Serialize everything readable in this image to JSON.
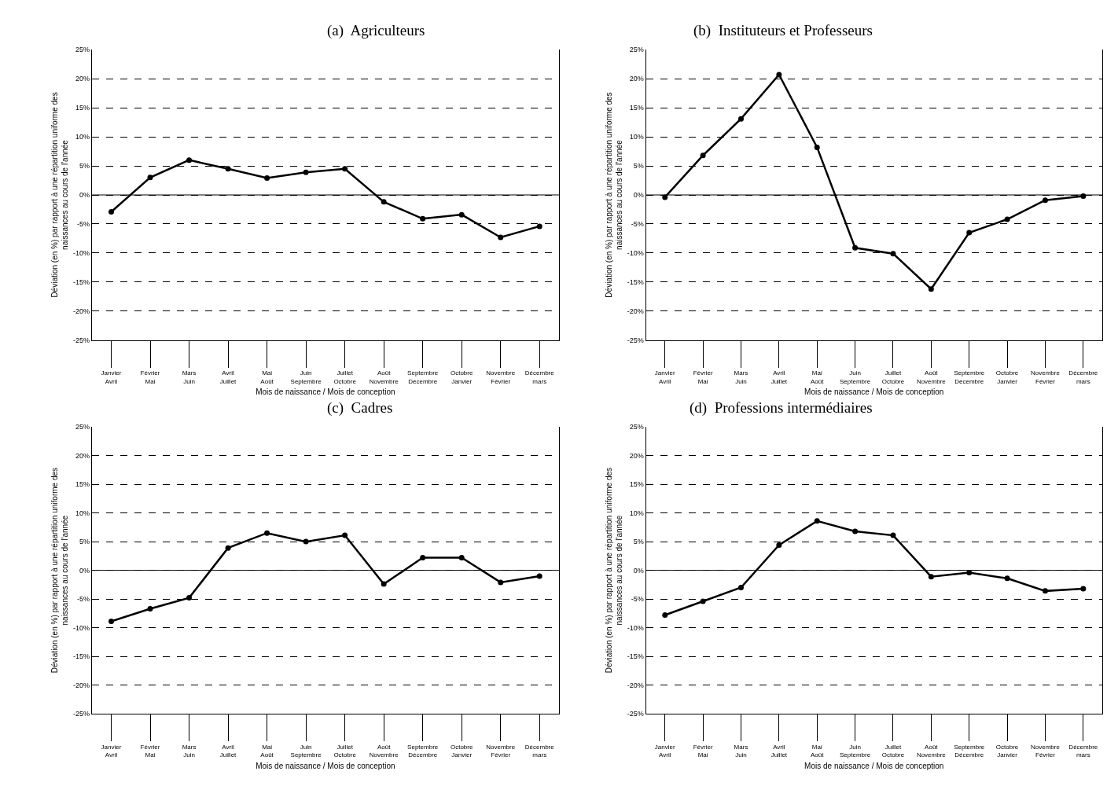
{
  "chart_data": [
    {
      "type": "line",
      "title": "(a)  Agriculteurs",
      "xlabel": "Mois de naissance / Mois de conception",
      "ylabel": "Déviation (en %) par rapport à une répartition uniforme des\nnaissances au cours de l'année",
      "categories": [
        "Janvier\nAvril",
        "Février\nMai",
        "Mars\nJuin",
        "Avril\nJuillet",
        "Mai\nAoût",
        "Juin\nSeptembre",
        "Juillet\nOctobre",
        "Août\nNovembre",
        "Septembre\nDécembre",
        "Octobre\nJanvier",
        "Novembre\nFévrier",
        "Décembre\nmars"
      ],
      "series": [
        {
          "color": "#000000",
          "values": [
            -2.9,
            3.0,
            6.0,
            4.5,
            2.9,
            3.9,
            4.5,
            -1.2,
            -4.1,
            -3.4,
            -7.3,
            -5.4
          ]
        }
      ],
      "ylim": [
        -25,
        25
      ],
      "yticks": [
        {
          "value": -25,
          "label": "-25%"
        },
        {
          "value": -20,
          "label": "-20%"
        },
        {
          "value": -15,
          "label": "-15%"
        },
        {
          "value": -10,
          "label": "-10%"
        },
        {
          "value": -5,
          "label": "-5%"
        },
        {
          "value": 0,
          "label": "0%"
        },
        {
          "value": 5,
          "label": "5%"
        },
        {
          "value": 10,
          "label": "10%"
        },
        {
          "value": 15,
          "label": "15%"
        },
        {
          "value": 20,
          "label": "20%"
        },
        {
          "value": 25,
          "label": "25%"
        }
      ],
      "ref_lines": [
        {
          "axis": "y",
          "value": 0,
          "color": "#000000",
          "line_style": "solid"
        }
      ],
      "grid": "y",
      "marker": "circle",
      "line_style": "solid"
    },
    {
      "type": "line",
      "title": "(b)  Instituteurs et Professeurs",
      "xlabel": "Mois de naissance / Mois de conception",
      "ylabel": "Déviation (en %) par rapport à une répartition uniforme des\nnaissances au cours de l'année",
      "categories": [
        "Janvier\nAvril",
        "Février\nMai",
        "Mars\nJuin",
        "Avril\nJuillet",
        "Mai\nAoût",
        "Juin\nSeptembre",
        "Juillet\nOctobre",
        "Août\nNovembre",
        "Septembre\nDécembre",
        "Octobre\nJanvier",
        "Novembre\nFévrier",
        "Décembre\nmars"
      ],
      "series": [
        {
          "color": "#000000",
          "values": [
            -0.4,
            6.8,
            13.1,
            20.7,
            8.2,
            -9.1,
            -10.1,
            -16.2,
            -6.5,
            -4.2,
            -0.9,
            -0.2
          ]
        }
      ],
      "ylim": [
        -25,
        25
      ],
      "yticks": [
        {
          "value": -25,
          "label": "-25%"
        },
        {
          "value": -20,
          "label": "-20%"
        },
        {
          "value": -15,
          "label": "-15%"
        },
        {
          "value": -10,
          "label": "-10%"
        },
        {
          "value": -5,
          "label": "-5%"
        },
        {
          "value": 0,
          "label": "0%"
        },
        {
          "value": 5,
          "label": "5%"
        },
        {
          "value": 10,
          "label": "10%"
        },
        {
          "value": 15,
          "label": "15%"
        },
        {
          "value": 20,
          "label": "20%"
        },
        {
          "value": 25,
          "label": "25%"
        }
      ],
      "ref_lines": [
        {
          "axis": "y",
          "value": 0,
          "color": "#000000",
          "line_style": "solid"
        }
      ],
      "grid": "y",
      "marker": "circle",
      "line_style": "solid"
    },
    {
      "type": "line",
      "title": "(c)  Cadres",
      "xlabel": "Mois de naissance / Mois de conception",
      "ylabel": "Déviation (en %) par rapport à une répartition uniforme des\nnaissances au cours de l'année",
      "categories": [
        "Janvier\nAvril",
        "Février\nMai",
        "Mars\nJuin",
        "Avril\nJuillet",
        "Mai\nAoût",
        "Juin\nSeptembre",
        "Juillet\nOctobre",
        "Août\nNovembre",
        "Septembre\nDécembre",
        "Octobre\nJanvier",
        "Novembre\nFévrier",
        "Décembre\nmars"
      ],
      "series": [
        {
          "color": "#000000",
          "values": [
            -8.9,
            -6.7,
            -4.8,
            3.9,
            6.5,
            5.0,
            6.1,
            -2.4,
            2.2,
            2.2,
            -2.1,
            -1.0
          ]
        }
      ],
      "ylim": [
        -25,
        25
      ],
      "yticks": [
        {
          "value": -25,
          "label": "-25%"
        },
        {
          "value": -20,
          "label": "-20%"
        },
        {
          "value": -15,
          "label": "-15%"
        },
        {
          "value": -10,
          "label": "-10%"
        },
        {
          "value": -5,
          "label": "-5%"
        },
        {
          "value": 0,
          "label": "0%"
        },
        {
          "value": 5,
          "label": "5%"
        },
        {
          "value": 10,
          "label": "10%"
        },
        {
          "value": 15,
          "label": "15%"
        },
        {
          "value": 20,
          "label": "20%"
        },
        {
          "value": 25,
          "label": "25%"
        }
      ],
      "ref_lines": [
        {
          "axis": "y",
          "value": 0,
          "color": "#000000",
          "line_style": "solid"
        }
      ],
      "grid": "y",
      "marker": "circle",
      "line_style": "solid"
    },
    {
      "type": "line",
      "title": "(d)  Professions intermédiaires",
      "xlabel": "Mois de naissance / Mois de conception",
      "ylabel": "Déviation (en %) par rapport à une répartition uniforme des\nnaissances au cours de l'année",
      "categories": [
        "Janvier\nAvril",
        "Février\nMai",
        "Mars\nJuin",
        "Avril\nJuillet",
        "Mai\nAoût",
        "Juin\nSeptembre",
        "Juillet\nOctobre",
        "Août\nNovembre",
        "Septembre\nDécembre",
        "Octobre\nJanvier",
        "Novembre\nFévrier",
        "Décembre\nmars"
      ],
      "series": [
        {
          "color": "#000000",
          "values": [
            -7.8,
            -5.4,
            -3.0,
            4.4,
            8.6,
            6.8,
            6.1,
            -1.1,
            -0.4,
            -1.4,
            -3.6,
            -3.2
          ]
        }
      ],
      "ylim": [
        -25,
        25
      ],
      "yticks": [
        {
          "value": -25,
          "label": "-25%"
        },
        {
          "value": -20,
          "label": "-20%"
        },
        {
          "value": -15,
          "label": "-15%"
        },
        {
          "value": -10,
          "label": "-10%"
        },
        {
          "value": -5,
          "label": "-5%"
        },
        {
          "value": 0,
          "label": "0%"
        },
        {
          "value": 5,
          "label": "5%"
        },
        {
          "value": 10,
          "label": "10%"
        },
        {
          "value": 15,
          "label": "15%"
        },
        {
          "value": 20,
          "label": "20%"
        },
        {
          "value": 25,
          "label": "25%"
        }
      ],
      "ref_lines": [
        {
          "axis": "y",
          "value": 0,
          "color": "#000000",
          "line_style": "solid"
        }
      ],
      "grid": "y",
      "marker": "circle",
      "line_style": "solid"
    }
  ]
}
